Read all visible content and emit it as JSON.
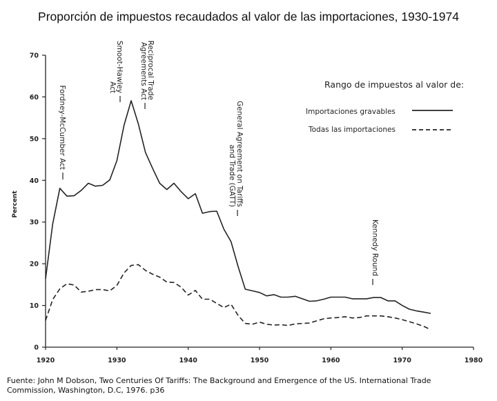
{
  "title": "Proporción de impuestos recaudados al valor de las importaciones, 1930-1974",
  "source": {
    "line1": "Fuente: John M Dobson, Two Centuries Of Tariffs: The Background and Emergence of the US. International Trade",
    "line2": "Commission, Washington, D.C, 1976. p36"
  },
  "chart_data": {
    "type": "line",
    "title": "Proporción de impuestos recaudados al valor de las importaciones, 1930-1974",
    "xlabel": "",
    "ylabel": "Percent",
    "xlim": [
      1920,
      1980
    ],
    "ylim": [
      0,
      70
    ],
    "xticks": [
      1920,
      1930,
      1940,
      1950,
      1960,
      1970,
      1980
    ],
    "yticks": [
      0,
      10,
      20,
      30,
      40,
      50,
      60,
      70
    ],
    "legend": {
      "title": "Rango de impuestos al valor de:",
      "position": "top-right"
    },
    "series": [
      {
        "name": "Importaciones gravables",
        "style": "solid",
        "x": [
          1920,
          1921,
          1922,
          1923,
          1924,
          1925,
          1926,
          1927,
          1928,
          1929,
          1930,
          1931,
          1932,
          1933,
          1934,
          1935,
          1936,
          1937,
          1938,
          1939,
          1940,
          1941,
          1942,
          1943,
          1944,
          1945,
          1946,
          1947,
          1948,
          1949,
          1950,
          1951,
          1952,
          1953,
          1954,
          1955,
          1956,
          1957,
          1958,
          1959,
          1960,
          1961,
          1962,
          1963,
          1964,
          1965,
          1966,
          1967,
          1968,
          1969,
          1970,
          1971,
          1972,
          1973,
          1974
        ],
        "values": [
          16.4,
          29.5,
          38.1,
          36.2,
          36.3,
          37.6,
          39.3,
          38.6,
          38.8,
          40.1,
          44.7,
          53.2,
          59.1,
          53.6,
          46.7,
          42.9,
          39.3,
          37.8,
          39.3,
          37.3,
          35.6,
          36.8,
          32.1,
          32.5,
          32.6,
          28.3,
          25.3,
          19.3,
          13.9,
          13.5,
          13.1,
          12.3,
          12.6,
          12.0,
          12.0,
          12.2,
          11.6,
          11.0,
          11.1,
          11.5,
          12.0,
          12.0,
          12.0,
          11.6,
          11.6,
          11.6,
          11.9,
          11.9,
          11.1,
          11.1,
          10.0,
          9.1,
          8.7,
          8.4,
          8.1
        ]
      },
      {
        "name": "Todas las importaciones",
        "style": "dashed",
        "x": [
          1920,
          1921,
          1922,
          1923,
          1924,
          1925,
          1926,
          1927,
          1928,
          1929,
          1930,
          1931,
          1932,
          1933,
          1934,
          1935,
          1936,
          1937,
          1938,
          1939,
          1940,
          1941,
          1942,
          1943,
          1944,
          1945,
          1946,
          1947,
          1948,
          1949,
          1950,
          1951,
          1952,
          1953,
          1954,
          1955,
          1956,
          1957,
          1958,
          1959,
          1960,
          1961,
          1962,
          1963,
          1964,
          1965,
          1966,
          1967,
          1968,
          1969,
          1970,
          1971,
          1972,
          1973,
          1974
        ],
        "values": [
          6.4,
          11.4,
          14.0,
          15.2,
          14.9,
          13.2,
          13.4,
          13.8,
          13.8,
          13.5,
          14.8,
          17.8,
          19.6,
          19.8,
          18.4,
          17.5,
          16.8,
          15.6,
          15.5,
          14.4,
          12.5,
          13.6,
          11.5,
          11.5,
          10.5,
          9.5,
          10.3,
          7.6,
          5.7,
          5.5,
          6.0,
          5.5,
          5.3,
          5.4,
          5.2,
          5.6,
          5.7,
          5.8,
          6.3,
          6.8,
          7.0,
          7.1,
          7.3,
          7.0,
          7.1,
          7.5,
          7.5,
          7.5,
          7.3,
          7.0,
          6.6,
          6.1,
          5.6,
          5.0,
          4.2
        ]
      }
    ],
    "annotations": [
      {
        "label": "Fordney-McCumber Act",
        "year": 1922
      },
      {
        "label": "Smoot-Hawley",
        "label2": "Act",
        "year": 1930
      },
      {
        "label": "Reciprocal Trade",
        "label2": "Agreements Act",
        "year": 1934
      },
      {
        "label": "General Agreement on Tariffs",
        "label2": "and Trade (GATT)",
        "year": 1947
      },
      {
        "label": "Kennedy Round",
        "year": 1967
      }
    ]
  }
}
